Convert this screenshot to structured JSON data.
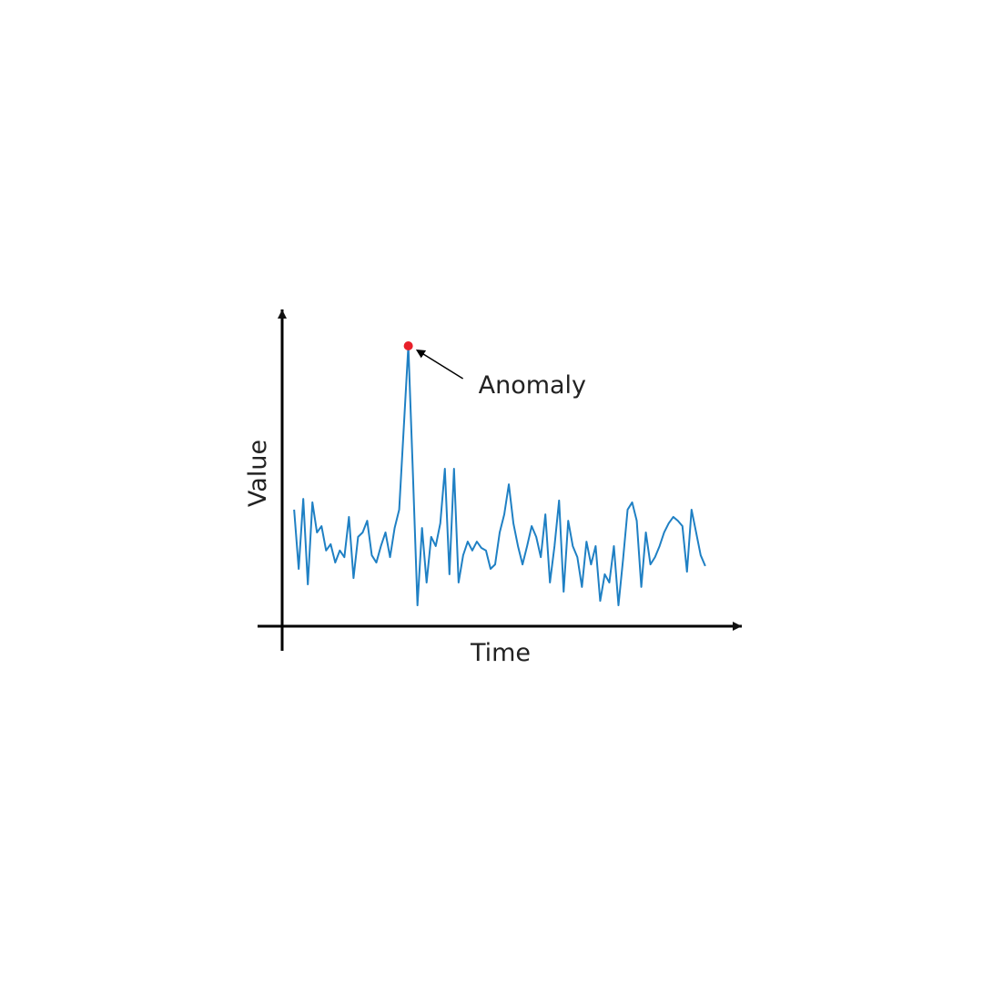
{
  "chart_data": {
    "type": "line",
    "x_label": "Time",
    "y_label": "Value",
    "annotation": {
      "text": "Anomaly",
      "color": "#e8202a"
    },
    "x": [
      0,
      1,
      2,
      3,
      4,
      5,
      6,
      7,
      8,
      9,
      10,
      11,
      12,
      13,
      14,
      15,
      16,
      17,
      18,
      19,
      20,
      21,
      22,
      23,
      24,
      25,
      26,
      27,
      28,
      29,
      30,
      31,
      32,
      33,
      34,
      35,
      36,
      37,
      38,
      39,
      40,
      41,
      42,
      43,
      44,
      45,
      46,
      47,
      48,
      49,
      50,
      51,
      52,
      53,
      54,
      55,
      56,
      57,
      58,
      59,
      60,
      61,
      62,
      63,
      64,
      65,
      66,
      67,
      68,
      69,
      70,
      71,
      72,
      73,
      74,
      75,
      76,
      77,
      78,
      79,
      80,
      81,
      82,
      83,
      84,
      85,
      86,
      87,
      88,
      89,
      90
    ],
    "series": [
      {
        "name": "Value",
        "color": "#1f80c4",
        "values": [
          36.8,
          18.1,
          40.2,
          13.2,
          39.1,
          29.6,
          31.6,
          23.9,
          25.9,
          20.1,
          23.9,
          21.8,
          34.5,
          15.2,
          28.2,
          29.6,
          33.3,
          22.4,
          20.1,
          25.3,
          29.6,
          21.8,
          31.0,
          36.8,
          62.6,
          88.5,
          48.3,
          6.6,
          31.0,
          13.8,
          28.2,
          25.3,
          32.5,
          49.7,
          16.4,
          49.7,
          13.8,
          22.4,
          26.7,
          23.9,
          26.7,
          24.7,
          23.9,
          18.1,
          19.5,
          29.6,
          35.3,
          44.8,
          32.5,
          25.3,
          19.5,
          25.3,
          31.6,
          28.2,
          21.8,
          35.3,
          13.8,
          25.3,
          39.7,
          10.9,
          33.3,
          25.3,
          21.8,
          12.4,
          26.7,
          19.5,
          25.3,
          8.0,
          16.4,
          13.8,
          25.3,
          6.6,
          21.0,
          36.8,
          39.1,
          33.3,
          12.4,
          29.6,
          19.5,
          21.8,
          25.3,
          29.6,
          32.5,
          34.5,
          33.3,
          31.6,
          17.2,
          36.8,
          29.6,
          22.4,
          19.0
        ]
      }
    ],
    "xlim": [
      -8,
      98
    ],
    "ylim": [
      0,
      100
    ]
  }
}
